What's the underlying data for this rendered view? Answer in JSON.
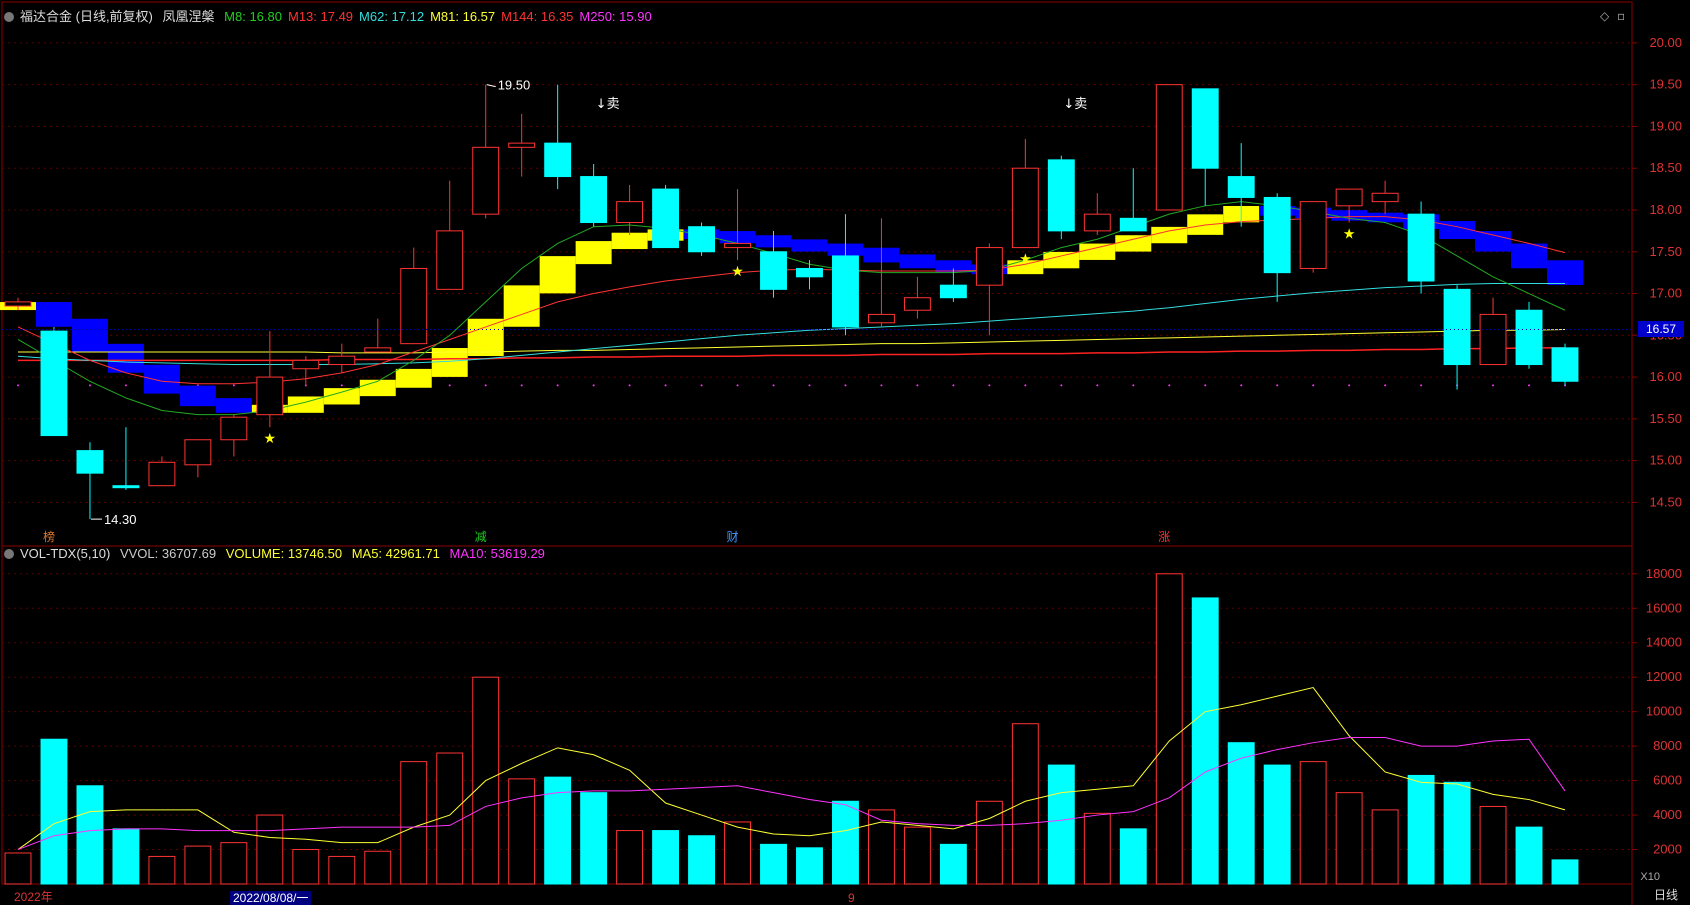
{
  "header": {
    "title": "福达合金 (日线,前复权)",
    "indicator": "凤凰涅槃",
    "ma": [
      {
        "label": "M8: 16.80",
        "color": "#22cc22"
      },
      {
        "label": "M13: 17.49",
        "color": "#ff3333"
      },
      {
        "label": "M62: 17.12",
        "color": "#33dddd"
      },
      {
        "label": "M81: 16.57",
        "color": "#ffff33"
      },
      {
        "label": "M144: 16.35",
        "color": "#ff3333"
      },
      {
        "label": "M250: 15.90",
        "color": "#ff33ff"
      }
    ]
  },
  "vol_header": {
    "name": "VOL-TDX(5,10)",
    "vvol": "VVOL: 36707.69",
    "volume": "VOLUME: 13746.50",
    "ma5": "MA5: 42961.71",
    "ma10": "MA10: 53619.29",
    "colors": {
      "vvol": "#cccccc",
      "volume": "#ffff33",
      "ma5": "#ffff33",
      "ma10": "#ff33ff"
    }
  },
  "price_tag": "16.57",
  "period_label": "日线",
  "vol_unit": "X10",
  "x_labels": {
    "year": "2022年",
    "date": "2022/08/08/一",
    "month": "9"
  },
  "annotations": {
    "high": "19.50",
    "low": "14.30",
    "sell": "↓卖",
    "star": "★"
  },
  "chart_data": {
    "type": "candlestick",
    "price_axis": {
      "ylim": [
        14.05,
        20.25
      ],
      "ticks": [
        14.5,
        15.0,
        15.5,
        16.0,
        16.5,
        17.0,
        17.5,
        18.0,
        18.5,
        19.0,
        19.5,
        20.0
      ]
    },
    "volume_axis": {
      "ylim": [
        0,
        18800
      ],
      "ticks": [
        2000,
        4000,
        6000,
        8000,
        10000,
        12000,
        14000,
        16000,
        18000
      ]
    },
    "candles": [
      {
        "o": 16.85,
        "h": 16.95,
        "l": 16.8,
        "c": 16.9,
        "v": 1800
      },
      {
        "o": 16.55,
        "h": 16.6,
        "l": 15.3,
        "c": 15.3,
        "v": 8400
      },
      {
        "o": 15.12,
        "h": 15.22,
        "l": 14.3,
        "c": 14.85,
        "v": 5700
      },
      {
        "o": 14.7,
        "h": 15.4,
        "l": 14.65,
        "c": 14.68,
        "v": 3200
      },
      {
        "o": 14.7,
        "h": 15.05,
        "l": 14.7,
        "c": 14.98,
        "v": 1600
      },
      {
        "o": 14.95,
        "h": 15.25,
        "l": 14.8,
        "c": 15.25,
        "v": 2200
      },
      {
        "o": 15.25,
        "h": 15.55,
        "l": 15.05,
        "c": 15.52,
        "v": 2400
      },
      {
        "o": 15.55,
        "h": 16.55,
        "l": 15.4,
        "c": 16.0,
        "v": 4000
      },
      {
        "o": 16.1,
        "h": 16.25,
        "l": 15.9,
        "c": 16.2,
        "v": 2000
      },
      {
        "o": 16.15,
        "h": 16.4,
        "l": 16.05,
        "c": 16.25,
        "v": 1600
      },
      {
        "o": 16.3,
        "h": 16.7,
        "l": 16.3,
        "c": 16.35,
        "v": 1900
      },
      {
        "o": 16.4,
        "h": 17.55,
        "l": 16.4,
        "c": 17.3,
        "v": 7100
      },
      {
        "o": 17.05,
        "h": 18.35,
        "l": 17.05,
        "c": 17.75,
        "v": 7600
      },
      {
        "o": 17.95,
        "h": 19.5,
        "l": 17.9,
        "c": 18.75,
        "v": 12000
      },
      {
        "o": 18.75,
        "h": 19.15,
        "l": 18.4,
        "c": 18.8,
        "v": 6100
      },
      {
        "o": 18.8,
        "h": 19.5,
        "l": 18.25,
        "c": 18.4,
        "v": 6200
      },
      {
        "o": 18.4,
        "h": 18.55,
        "l": 17.8,
        "c": 17.85,
        "v": 5300
      },
      {
        "o": 17.85,
        "h": 18.3,
        "l": 17.7,
        "c": 18.1,
        "v": 3100
      },
      {
        "o": 18.25,
        "h": 18.3,
        "l": 17.55,
        "c": 17.55,
        "v": 3100
      },
      {
        "o": 17.8,
        "h": 17.85,
        "l": 17.45,
        "c": 17.5,
        "v": 2800
      },
      {
        "o": 17.55,
        "h": 18.25,
        "l": 17.4,
        "c": 17.6,
        "v": 3600
      },
      {
        "o": 17.5,
        "h": 17.75,
        "l": 16.95,
        "c": 17.05,
        "v": 2300
      },
      {
        "o": 17.3,
        "h": 17.4,
        "l": 17.05,
        "c": 17.2,
        "v": 2100
      },
      {
        "o": 17.45,
        "h": 17.95,
        "l": 16.5,
        "c": 16.6,
        "v": 4800
      },
      {
        "o": 16.65,
        "h": 17.9,
        "l": 16.6,
        "c": 16.75,
        "v": 4300
      },
      {
        "o": 16.8,
        "h": 17.2,
        "l": 16.7,
        "c": 16.95,
        "v": 3300
      },
      {
        "o": 17.1,
        "h": 17.3,
        "l": 16.9,
        "c": 16.95,
        "v": 2300
      },
      {
        "o": 17.1,
        "h": 17.6,
        "l": 16.5,
        "c": 17.55,
        "v": 4800
      },
      {
        "o": 17.55,
        "h": 18.85,
        "l": 17.55,
        "c": 18.5,
        "v": 9300
      },
      {
        "o": 18.6,
        "h": 18.65,
        "l": 17.65,
        "c": 17.75,
        "v": 6900
      },
      {
        "o": 17.75,
        "h": 18.2,
        "l": 17.7,
        "c": 17.95,
        "v": 4100
      },
      {
        "o": 17.9,
        "h": 18.5,
        "l": 17.8,
        "c": 17.75,
        "v": 3200
      },
      {
        "o": 18.0,
        "h": 19.5,
        "l": 18.0,
        "c": 19.5,
        "v": 18000
      },
      {
        "o": 19.45,
        "h": 19.45,
        "l": 18.05,
        "c": 18.5,
        "v": 16600
      },
      {
        "o": 18.4,
        "h": 18.8,
        "l": 17.8,
        "c": 18.15,
        "v": 8200
      },
      {
        "o": 18.15,
        "h": 18.2,
        "l": 16.9,
        "c": 17.25,
        "v": 6900
      },
      {
        "o": 17.3,
        "h": 18.05,
        "l": 17.25,
        "c": 18.1,
        "v": 7100
      },
      {
        "o": 18.05,
        "h": 18.25,
        "l": 17.85,
        "c": 18.25,
        "v": 5300
      },
      {
        "o": 18.1,
        "h": 18.35,
        "l": 17.95,
        "c": 18.2,
        "v": 4300
      },
      {
        "o": 17.95,
        "h": 18.1,
        "l": 17.0,
        "c": 17.15,
        "v": 6300
      },
      {
        "o": 17.05,
        "h": 17.1,
        "l": 15.85,
        "c": 16.15,
        "v": 5900
      },
      {
        "o": 16.15,
        "h": 16.95,
        "l": 16.15,
        "c": 16.75,
        "v": 4500
      },
      {
        "o": 16.8,
        "h": 16.9,
        "l": 16.1,
        "c": 16.15,
        "v": 3300
      },
      {
        "o": 16.35,
        "h": 16.4,
        "l": 15.9,
        "c": 15.95,
        "v": 1400
      }
    ],
    "lines": {
      "ma13": {
        "color": "#ff3333",
        "values": [
          16.6,
          16.4,
          16.2,
          16.05,
          15.95,
          15.92,
          15.92,
          15.94,
          15.98,
          16.05,
          16.15,
          16.3,
          16.45,
          16.6,
          16.75,
          16.9,
          17.0,
          17.08,
          17.15,
          17.2,
          17.25,
          17.28,
          17.29,
          17.28,
          17.27,
          17.27,
          17.27,
          17.28,
          17.35,
          17.45,
          17.55,
          17.65,
          17.75,
          17.82,
          17.86,
          17.88,
          17.9,
          17.92,
          17.92,
          17.88,
          17.8,
          17.7,
          17.6,
          17.49
        ]
      },
      "ma8": {
        "color": "#22aa22",
        "values": [
          16.45,
          16.2,
          15.95,
          15.75,
          15.6,
          15.55,
          15.55,
          15.6,
          15.7,
          15.82,
          15.95,
          16.2,
          16.5,
          16.9,
          17.3,
          17.6,
          17.8,
          17.82,
          17.78,
          17.7,
          17.6,
          17.48,
          17.35,
          17.28,
          17.25,
          17.25,
          17.25,
          17.28,
          17.4,
          17.55,
          17.65,
          17.8,
          17.95,
          18.05,
          18.1,
          18.05,
          17.98,
          17.9,
          17.85,
          17.7,
          17.45,
          17.2,
          17.0,
          16.8
        ]
      },
      "ma62": {
        "color": "#33dddd",
        "values": [
          16.25,
          16.22,
          16.2,
          16.18,
          16.17,
          16.16,
          16.15,
          16.15,
          16.15,
          16.15,
          16.16,
          16.17,
          16.19,
          16.22,
          16.26,
          16.3,
          16.34,
          16.38,
          16.42,
          16.46,
          16.5,
          16.53,
          16.56,
          16.58,
          16.6,
          16.62,
          16.64,
          16.67,
          16.7,
          16.73,
          16.76,
          16.79,
          16.83,
          16.88,
          16.93,
          16.97,
          17.01,
          17.04,
          17.07,
          17.09,
          17.11,
          17.12,
          17.12,
          17.12
        ]
      },
      "ma81": {
        "color": "#ffff33",
        "values": [
          16.3,
          16.3,
          16.3,
          16.3,
          16.3,
          16.3,
          16.3,
          16.3,
          16.3,
          16.29,
          16.29,
          16.29,
          16.3,
          16.3,
          16.31,
          16.32,
          16.32,
          16.33,
          16.34,
          16.35,
          16.36,
          16.37,
          16.38,
          16.39,
          16.4,
          16.4,
          16.41,
          16.42,
          16.43,
          16.44,
          16.45,
          16.46,
          16.47,
          16.48,
          16.49,
          16.5,
          16.51,
          16.52,
          16.53,
          16.54,
          16.55,
          16.56,
          16.56,
          16.57
        ]
      },
      "ma144": {
        "color": "#ff2222",
        "values": [
          16.2,
          16.2,
          16.2,
          16.2,
          16.2,
          16.2,
          16.2,
          16.2,
          16.2,
          16.21,
          16.21,
          16.21,
          16.22,
          16.22,
          16.23,
          16.23,
          16.24,
          16.24,
          16.25,
          16.25,
          16.25,
          16.26,
          16.26,
          16.26,
          16.27,
          16.27,
          16.27,
          16.28,
          16.28,
          16.28,
          16.29,
          16.29,
          16.3,
          16.3,
          16.31,
          16.31,
          16.32,
          16.32,
          16.33,
          16.33,
          16.34,
          16.34,
          16.35,
          16.35
        ]
      },
      "ma250": {
        "color": "#ff33ff",
        "style": "dotted",
        "value": 15.9
      }
    },
    "ribbon": {
      "values": [
        16.85,
        16.65,
        16.35,
        16.1,
        15.85,
        15.7,
        15.62,
        15.62,
        15.72,
        15.82,
        15.92,
        16.05,
        16.3,
        16.65,
        17.05,
        17.4,
        17.58,
        17.68,
        17.72,
        17.7,
        17.65,
        17.6,
        17.55,
        17.5,
        17.42,
        17.35,
        17.3,
        17.28,
        17.35,
        17.45,
        17.55,
        17.65,
        17.75,
        17.9,
        18.0,
        17.98,
        17.95,
        17.92,
        17.9,
        17.82,
        17.7,
        17.55,
        17.35,
        17.15
      ],
      "colors": {
        "up": "#ffff00",
        "down": "#0000ff"
      }
    },
    "volume_lines": {
      "ma5": {
        "color": "#ffff33",
        "values": [
          2000,
          3500,
          4200,
          4300,
          4300,
          4300,
          3000,
          2700,
          2600,
          2400,
          2400,
          3300,
          4000,
          6000,
          7000,
          7900,
          7500,
          6600,
          4700,
          4000,
          3300,
          2900,
          2800,
          3100,
          3600,
          3400,
          3200,
          3800,
          4800,
          5300,
          5500,
          5700,
          8300,
          10000,
          10400,
          10900,
          11400,
          8600,
          6500,
          5900,
          5800,
          5200,
          4900,
          4300
        ]
      },
      "ma10": {
        "color": "#ff33ff",
        "values": [
          2000,
          2800,
          3100,
          3200,
          3200,
          3100,
          3100,
          3100,
          3200,
          3300,
          3300,
          3300,
          3400,
          4500,
          5000,
          5300,
          5400,
          5400,
          5500,
          5600,
          5700,
          5300,
          4900,
          4600,
          3700,
          3500,
          3400,
          3400,
          3500,
          3700,
          4000,
          4200,
          5000,
          6500,
          7300,
          7800,
          8200,
          8500,
          8500,
          8000,
          8000,
          8300,
          8400,
          5400
        ]
      }
    },
    "markers": {
      "stars": [
        7,
        20,
        28,
        37
      ],
      "sell": [
        16,
        29
      ],
      "high_index": 13,
      "low_index": 2,
      "tags": [
        {
          "i": 1,
          "text": "榜",
          "color": "#dd7733"
        },
        {
          "i": 13,
          "text": "减",
          "color": "#22cc22"
        },
        {
          "i": 20,
          "text": "财",
          "color": "#4499ff"
        },
        {
          "i": 32,
          "text": "涨",
          "color": "#ff3333"
        }
      ]
    }
  }
}
